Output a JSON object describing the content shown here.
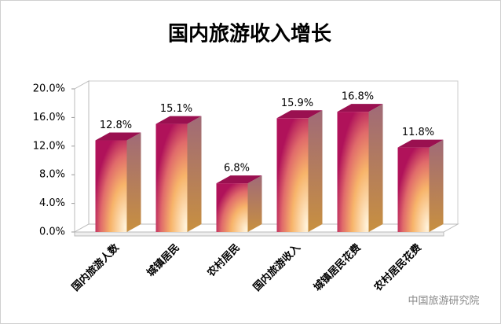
{
  "chart_data": {
    "type": "bar3d",
    "title": "国内旅游收入增长",
    "categories": [
      "国内旅游人数",
      "城镇居民",
      "农村居民",
      "国内旅游收入",
      "城镇居民花费",
      "农村居民花费"
    ],
    "values": [
      12.8,
      15.1,
      6.8,
      15.9,
      16.8,
      11.8
    ],
    "value_labels": [
      "12.8%",
      "15.1%",
      "6.8%",
      "15.9%",
      "16.8%",
      "11.8%"
    ],
    "ylim": [
      0,
      20
    ],
    "yticks": [
      {
        "value": 0,
        "label": "0.0%"
      },
      {
        "value": 4,
        "label": "4.0%"
      },
      {
        "value": 8,
        "label": "8.0%"
      },
      {
        "value": 12,
        "label": "12.0%"
      },
      {
        "value": 16,
        "label": "16.0%"
      },
      {
        "value": 20,
        "label": "20.0%"
      }
    ]
  },
  "watermark": "中国旅游研究院"
}
